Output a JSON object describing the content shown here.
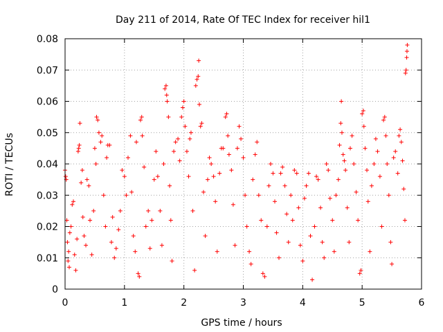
{
  "chart_data": {
    "type": "scatter",
    "title": "Day 211 of 2014, Rate Of TEC Index for receiver hil1",
    "xlabel": "GPS time / hours",
    "ylabel": "ROTI / TECUs",
    "xlim": [
      0,
      6
    ],
    "ylim": [
      0,
      0.08
    ],
    "xticks": [
      0,
      1,
      2,
      3,
      4,
      5,
      6
    ],
    "yticks": [
      0,
      0.01,
      0.02,
      0.03,
      0.04,
      0.05,
      0.06,
      0.07,
      0.08
    ],
    "xtick_labels": [
      "0",
      "1",
      "2",
      "3",
      "4",
      "5",
      "6"
    ],
    "ytick_labels": [
      "0",
      "0.01",
      "0.02",
      "0.03",
      "0.04",
      "0.05",
      "0.06",
      "0.07",
      "0.08"
    ],
    "grid": true,
    "marker": "+",
    "color": "#ff0000",
    "series": [
      {
        "name": "hil1",
        "points": [
          [
            0.0,
            0.038
          ],
          [
            0.01,
            0.036
          ],
          [
            0.02,
            0.035
          ],
          [
            0.03,
            0.022
          ],
          [
            0.04,
            0.015
          ],
          [
            0.05,
            0.009
          ],
          [
            0.06,
            0.012
          ],
          [
            0.07,
            0.007
          ],
          [
            0.08,
            0.018
          ],
          [
            0.1,
            0.02
          ],
          [
            0.12,
            0.027
          ],
          [
            0.14,
            0.028
          ],
          [
            0.16,
            0.011
          ],
          [
            0.18,
            0.006
          ],
          [
            0.2,
            0.016
          ],
          [
            0.22,
            0.044
          ],
          [
            0.23,
            0.045
          ],
          [
            0.24,
            0.046
          ],
          [
            0.25,
            0.053
          ],
          [
            0.27,
            0.034
          ],
          [
            0.29,
            0.038
          ],
          [
            0.3,
            0.023
          ],
          [
            0.32,
            0.017
          ],
          [
            0.35,
            0.014
          ],
          [
            0.37,
            0.035
          ],
          [
            0.4,
            0.033
          ],
          [
            0.42,
            0.022
          ],
          [
            0.45,
            0.011
          ],
          [
            0.48,
            0.025
          ],
          [
            0.5,
            0.045
          ],
          [
            0.52,
            0.04
          ],
          [
            0.53,
            0.055
          ],
          [
            0.55,
            0.054
          ],
          [
            0.57,
            0.05
          ],
          [
            0.6,
            0.047
          ],
          [
            0.62,
            0.049
          ],
          [
            0.65,
            0.03
          ],
          [
            0.68,
            0.02
          ],
          [
            0.7,
            0.042
          ],
          [
            0.72,
            0.046
          ],
          [
            0.75,
            0.046
          ],
          [
            0.78,
            0.015
          ],
          [
            0.8,
            0.023
          ],
          [
            0.83,
            0.01
          ],
          [
            0.86,
            0.013
          ],
          [
            0.9,
            0.019
          ],
          [
            0.93,
            0.025
          ],
          [
            0.96,
            0.038
          ],
          [
            1.0,
            0.036
          ],
          [
            1.03,
            0.03
          ],
          [
            1.06,
            0.042
          ],
          [
            1.1,
            0.049
          ],
          [
            1.12,
            0.031
          ],
          [
            1.15,
            0.017
          ],
          [
            1.18,
            0.012
          ],
          [
            1.2,
            0.047
          ],
          [
            1.23,
            0.005
          ],
          [
            1.25,
            0.004
          ],
          [
            1.27,
            0.054
          ],
          [
            1.29,
            0.055
          ],
          [
            1.3,
            0.049
          ],
          [
            1.33,
            0.039
          ],
          [
            1.36,
            0.02
          ],
          [
            1.4,
            0.025
          ],
          [
            1.43,
            0.013
          ],
          [
            1.46,
            0.022
          ],
          [
            1.5,
            0.035
          ],
          [
            1.53,
            0.044
          ],
          [
            1.56,
            0.036
          ],
          [
            1.6,
            0.025
          ],
          [
            1.63,
            0.014
          ],
          [
            1.66,
            0.04
          ],
          [
            1.68,
            0.064
          ],
          [
            1.7,
            0.065
          ],
          [
            1.71,
            0.062
          ],
          [
            1.72,
            0.06
          ],
          [
            1.74,
            0.055
          ],
          [
            1.76,
            0.033
          ],
          [
            1.78,
            0.022
          ],
          [
            1.8,
            0.009
          ],
          [
            1.83,
            0.044
          ],
          [
            1.86,
            0.047
          ],
          [
            1.9,
            0.048
          ],
          [
            1.93,
            0.041
          ],
          [
            1.96,
            0.055
          ],
          [
            1.98,
            0.058
          ],
          [
            2.0,
            0.06
          ],
          [
            2.02,
            0.052
          ],
          [
            2.05,
            0.044
          ],
          [
            2.08,
            0.036
          ],
          [
            2.1,
            0.048
          ],
          [
            2.12,
            0.05
          ],
          [
            2.15,
            0.025
          ],
          [
            2.18,
            0.006
          ],
          [
            2.2,
            0.065
          ],
          [
            2.22,
            0.067
          ],
          [
            2.24,
            0.068
          ],
          [
            2.25,
            0.073
          ],
          [
            2.26,
            0.059
          ],
          [
            2.28,
            0.052
          ],
          [
            2.3,
            0.053
          ],
          [
            2.33,
            0.031
          ],
          [
            2.36,
            0.017
          ],
          [
            2.4,
            0.035
          ],
          [
            2.43,
            0.042
          ],
          [
            2.46,
            0.04
          ],
          [
            2.5,
            0.036
          ],
          [
            2.53,
            0.028
          ],
          [
            2.56,
            0.012
          ],
          [
            2.6,
            0.037
          ],
          [
            2.63,
            0.045
          ],
          [
            2.66,
            0.045
          ],
          [
            2.7,
            0.055
          ],
          [
            2.72,
            0.056
          ],
          [
            2.74,
            0.049
          ],
          [
            2.76,
            0.043
          ],
          [
            2.8,
            0.038
          ],
          [
            2.83,
            0.027
          ],
          [
            2.86,
            0.014
          ],
          [
            2.9,
            0.045
          ],
          [
            2.93,
            0.052
          ],
          [
            2.96,
            0.048
          ],
          [
            3.0,
            0.042
          ],
          [
            3.03,
            0.03
          ],
          [
            3.06,
            0.02
          ],
          [
            3.1,
            0.012
          ],
          [
            3.13,
            0.008
          ],
          [
            3.16,
            0.035
          ],
          [
            3.2,
            0.043
          ],
          [
            3.23,
            0.047
          ],
          [
            3.26,
            0.03
          ],
          [
            3.3,
            0.022
          ],
          [
            3.33,
            0.005
          ],
          [
            3.36,
            0.004
          ],
          [
            3.4,
            0.02
          ],
          [
            3.43,
            0.033
          ],
          [
            3.46,
            0.04
          ],
          [
            3.5,
            0.037
          ],
          [
            3.53,
            0.028
          ],
          [
            3.56,
            0.018
          ],
          [
            3.6,
            0.01
          ],
          [
            3.63,
            0.037
          ],
          [
            3.66,
            0.039
          ],
          [
            3.7,
            0.033
          ],
          [
            3.73,
            0.024
          ],
          [
            3.76,
            0.015
          ],
          [
            3.8,
            0.03
          ],
          [
            3.83,
            0.022
          ],
          [
            3.86,
            0.038
          ],
          [
            3.9,
            0.037
          ],
          [
            3.93,
            0.026
          ],
          [
            3.96,
            0.014
          ],
          [
            4.0,
            0.009
          ],
          [
            4.03,
            0.029
          ],
          [
            4.06,
            0.033
          ],
          [
            4.1,
            0.037
          ],
          [
            4.13,
            0.017
          ],
          [
            4.16,
            0.003
          ],
          [
            4.2,
            0.02
          ],
          [
            4.23,
            0.036
          ],
          [
            4.26,
            0.035
          ],
          [
            4.3,
            0.026
          ],
          [
            4.33,
            0.015
          ],
          [
            4.36,
            0.01
          ],
          [
            4.4,
            0.04
          ],
          [
            4.43,
            0.038
          ],
          [
            4.46,
            0.029
          ],
          [
            4.5,
            0.022
          ],
          [
            4.53,
            0.012
          ],
          [
            4.56,
            0.03
          ],
          [
            4.6,
            0.035
          ],
          [
            4.62,
            0.046
          ],
          [
            4.64,
            0.053
          ],
          [
            4.65,
            0.06
          ],
          [
            4.66,
            0.05
          ],
          [
            4.68,
            0.043
          ],
          [
            4.7,
            0.041
          ],
          [
            4.72,
            0.038
          ],
          [
            4.75,
            0.026
          ],
          [
            4.78,
            0.015
          ],
          [
            4.8,
            0.045
          ],
          [
            4.83,
            0.049
          ],
          [
            4.86,
            0.04
          ],
          [
            4.9,
            0.031
          ],
          [
            4.93,
            0.022
          ],
          [
            4.96,
            0.005
          ],
          [
            4.98,
            0.006
          ],
          [
            5.0,
            0.056
          ],
          [
            5.02,
            0.057
          ],
          [
            5.03,
            0.052
          ],
          [
            5.05,
            0.045
          ],
          [
            5.08,
            0.038
          ],
          [
            5.1,
            0.028
          ],
          [
            5.13,
            0.012
          ],
          [
            5.16,
            0.033
          ],
          [
            5.2,
            0.04
          ],
          [
            5.23,
            0.048
          ],
          [
            5.26,
            0.044
          ],
          [
            5.3,
            0.036
          ],
          [
            5.33,
            0.02
          ],
          [
            5.36,
            0.054
          ],
          [
            5.38,
            0.055
          ],
          [
            5.4,
            0.049
          ],
          [
            5.42,
            0.04
          ],
          [
            5.45,
            0.03
          ],
          [
            5.48,
            0.015
          ],
          [
            5.5,
            0.008
          ],
          [
            5.53,
            0.042
          ],
          [
            5.56,
            0.044
          ],
          [
            5.6,
            0.037
          ],
          [
            5.62,
            0.049
          ],
          [
            5.64,
            0.051
          ],
          [
            5.66,
            0.047
          ],
          [
            5.68,
            0.041
          ],
          [
            5.7,
            0.032
          ],
          [
            5.72,
            0.022
          ],
          [
            5.73,
            0.069
          ],
          [
            5.74,
            0.07
          ],
          [
            5.75,
            0.074
          ],
          [
            5.755,
            0.076
          ],
          [
            5.76,
            0.078
          ]
        ]
      }
    ]
  }
}
